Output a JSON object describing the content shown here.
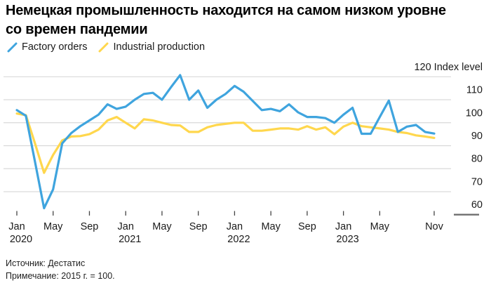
{
  "title": "Немецкая промышленность находится на самом низком уровне со времен пандемии",
  "legend": [
    {
      "label": "Factory orders",
      "color": "#3FA4DE"
    },
    {
      "label": "Industrial production",
      "color": "#FFD74D"
    }
  ],
  "source": "Источник: Дестатис",
  "note": "Примечание: 2015 г. = 100.",
  "colors": {
    "factory_orders": "#3FA4DE",
    "industrial_production": "#FFD74D",
    "gridline": "#d9d9d9",
    "axis_text": "#1a1a1a",
    "baseline_segment": "#6f6f6f",
    "tick": "#444444"
  },
  "chart_data": {
    "type": "line",
    "title": "Немецкая промышленность находится на самом низком уровне со времен пандемии",
    "y_axis_top_label": "120 Index level",
    "y_ticks": [
      120,
      110,
      100,
      90,
      80,
      70,
      60
    ],
    "ylim": [
      60,
      120
    ],
    "grid": "horizontal",
    "legend_position": "top-left",
    "x_tick_labels": [
      {
        "month": "Jan",
        "year": "2020",
        "month_index": 0
      },
      {
        "month": "May",
        "year": "",
        "month_index": 4
      },
      {
        "month": "Sep",
        "year": "",
        "month_index": 8
      },
      {
        "month": "Jan",
        "year": "2021",
        "month_index": 12
      },
      {
        "month": "May",
        "year": "",
        "month_index": 16
      },
      {
        "month": "Sep",
        "year": "",
        "month_index": 20
      },
      {
        "month": "Jan",
        "year": "2022",
        "month_index": 24
      },
      {
        "month": "May",
        "year": "",
        "month_index": 28
      },
      {
        "month": "Sep",
        "year": "",
        "month_index": 32
      },
      {
        "month": "Jan",
        "year": "2023",
        "month_index": 36
      },
      {
        "month": "May",
        "year": "",
        "month_index": 40
      },
      {
        "month": "Nov",
        "year": "",
        "month_index": 46
      }
    ],
    "x": [
      "2020-01",
      "2020-02",
      "2020-03",
      "2020-04",
      "2020-05",
      "2020-06",
      "2020-07",
      "2020-08",
      "2020-09",
      "2020-10",
      "2020-11",
      "2020-12",
      "2021-01",
      "2021-02",
      "2021-03",
      "2021-04",
      "2021-05",
      "2021-06",
      "2021-07",
      "2021-08",
      "2021-09",
      "2021-10",
      "2021-11",
      "2021-12",
      "2022-01",
      "2022-02",
      "2022-03",
      "2022-04",
      "2022-05",
      "2022-06",
      "2022-07",
      "2022-08",
      "2022-09",
      "2022-10",
      "2022-11",
      "2022-12",
      "2023-01",
      "2023-02",
      "2023-03",
      "2023-04",
      "2023-05",
      "2023-06",
      "2023-07",
      "2023-08",
      "2023-09",
      "2023-10",
      "2023-11"
    ],
    "series": [
      {
        "name": "Factory orders",
        "color": "#3FA4DE",
        "values": [
          105.5,
          103,
          83,
          62.8,
          71,
          91,
          95.5,
          98.5,
          101,
          103.5,
          108,
          106,
          107,
          110,
          112.5,
          113,
          110,
          115.5,
          120.7,
          110,
          114,
          106.5,
          110,
          112.5,
          116,
          113.5,
          109.5,
          105.5,
          106,
          105,
          108,
          104.5,
          102.5,
          102.5,
          102,
          100,
          103.5,
          106.5,
          95.2,
          95.2,
          102.5,
          109.6,
          96,
          98.3,
          99,
          96,
          95.3
        ]
      },
      {
        "name": "Industrial production",
        "color": "#FFD74D",
        "values": [
          104,
          103.3,
          91,
          78.2,
          86,
          92.3,
          94,
          94.2,
          95,
          97,
          101,
          102.5,
          100,
          97.5,
          101.5,
          101,
          100,
          99,
          98.8,
          96,
          96,
          98,
          99,
          99.5,
          100,
          100,
          96.5,
          96.5,
          97,
          97.5,
          97.5,
          97,
          98.5,
          97,
          98,
          95,
          98.3,
          100,
          98.5,
          98,
          97.5,
          97,
          96,
          95.5,
          94.5,
          94,
          93.4
        ]
      }
    ]
  }
}
